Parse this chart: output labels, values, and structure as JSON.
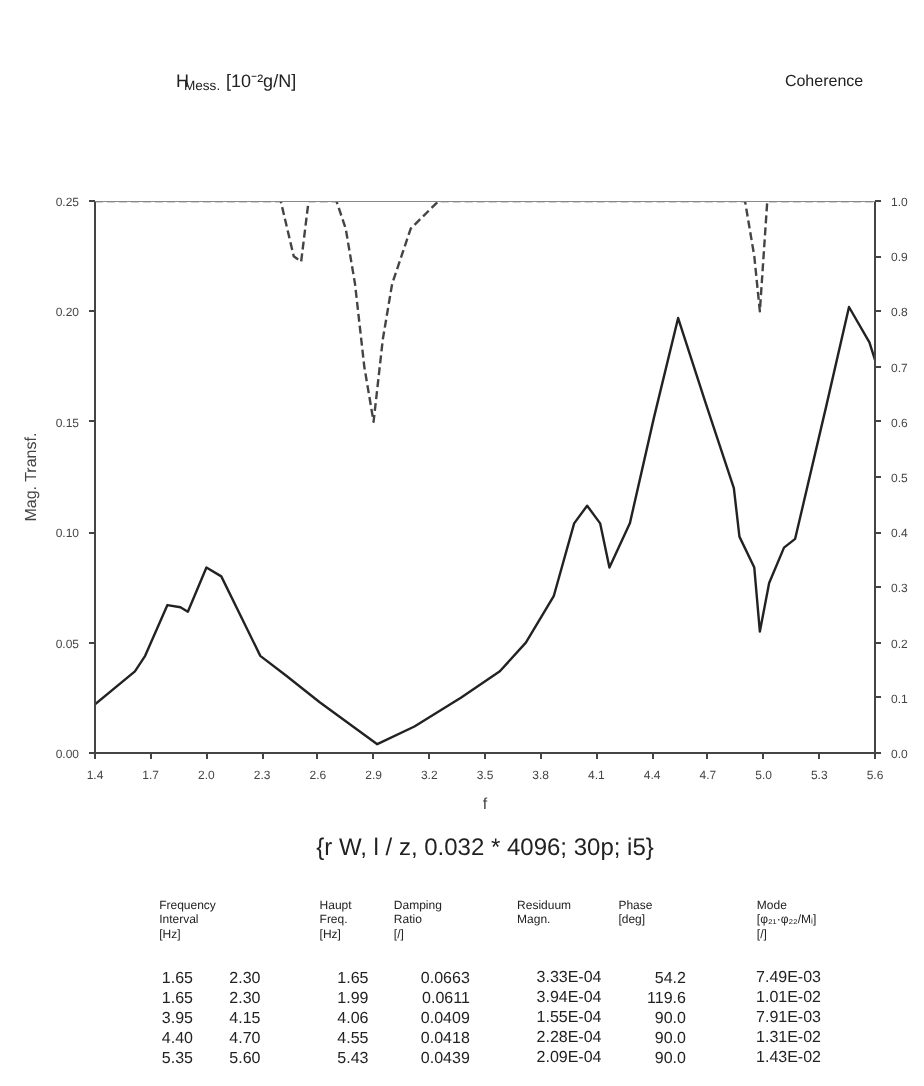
{
  "chart_data": {
    "type": "line",
    "title": "H$_{Mess.}$ [10⁻²g/N]",
    "subtitle": "{r W, l / z, 0.032 * 4096; 30p; i5}",
    "xlabel": "f",
    "ylabel": "Mag. Transf.",
    "xlim": [
      1.4,
      5.6
    ],
    "xticks": [
      1.4,
      1.7,
      {
        "value": 2.0,
        "label": "2.0"
      },
      2.3,
      2.6,
      2.9,
      3.2,
      3.5,
      3.8,
      4.1,
      4.4,
      4.7,
      {
        "value": 5.0,
        "label": "5.0"
      },
      5.3,
      5.6
    ],
    "ylim": [
      0,
      0.25
    ],
    "yticks": [
      {
        "value": 0,
        "label": "0.00"
      },
      {
        "value": 0.05,
        "label": "0.05"
      },
      {
        "value": 0.1,
        "label": "0.10"
      },
      {
        "value": 0.15,
        "label": "0.15"
      },
      {
        "value": 0.2,
        "label": "0.20"
      },
      {
        "value": 0.25,
        "label": "0.25"
      }
    ],
    "y2lim": [
      0,
      1
    ],
    "y2ticks": [
      {
        "value": 0,
        "label": "0.0"
      },
      0.1,
      0.2,
      0.3,
      0.4,
      0.5,
      0.6,
      0.7,
      0.8,
      0.9,
      {
        "value": 1,
        "label": "1.0"
      }
    ],
    "grid": false,
    "marker": "none",
    "series": [
      {
        "color": "#222222",
        "line_style": "solid",
        "x": [
          1.4,
          1.615,
          1.67,
          1.79,
          1.86,
          1.9,
          2.0,
          2.08,
          2.29,
          2.43,
          2.61,
          2.92,
          3.12,
          3.37,
          3.58,
          3.72,
          3.87,
          3.98,
          4.05,
          4.12,
          4.17,
          4.28,
          4.41,
          4.54,
          4.69,
          4.84,
          4.87,
          4.95,
          4.98,
          5.03,
          5.11,
          5.17,
          5.34,
          5.46,
          5.57,
          5.6
        ],
        "values": [
          0.022,
          0.037,
          0.044,
          0.067,
          0.066,
          0.064,
          0.084,
          0.08,
          0.044,
          0.035,
          0.023,
          0.004,
          0.012,
          0.025,
          0.037,
          0.05,
          0.071,
          0.104,
          0.112,
          0.104,
          0.084,
          0.104,
          0.152,
          0.197,
          0.158,
          0.12,
          0.098,
          0.084,
          0.055,
          0.077,
          0.093,
          0.097,
          0.158,
          0.202,
          0.186,
          0.178
        ]
      },
      {
        "color": "#444444",
        "line_style": "dashed",
        "axis": "y2",
        "x": [
          1.4,
          2.4,
          2.47,
          2.51,
          2.55,
          2.7,
          2.75,
          2.8,
          2.85,
          2.9,
          2.95,
          3.0,
          3.1,
          3.25,
          4.9,
          4.95,
          4.98,
          5.02,
          5.6
        ],
        "values": [
          1.0,
          1.0,
          0.9,
          0.89,
          1.0,
          1.0,
          0.95,
          0.85,
          0.7,
          0.6,
          0.75,
          0.85,
          0.95,
          1.0,
          1.0,
          0.9,
          0.8,
          1.0,
          1.0
        ]
      }
    ],
    "annotations": [
      "Coherence",
      "Frequency\nInterval\n[Hz]",
      "Haupt\nFreq.\n[Hz]",
      "Damping\nRatio\n[/]",
      "Residuum\nMagn.",
      "Phase\n[deg]",
      "Mode\n[φ₂₁·φ₂₂/Mᵢ]\n[/]",
      "1.65",
      "2.30",
      "1.65",
      "0.0663",
      "3.33E-04",
      "54.2",
      "7.49E-03",
      "1.65",
      "2.30",
      "1.99",
      "0.0611",
      "3.94E-04",
      "119.6",
      "1.01E-02",
      "3.95",
      "4.15",
      "4.06",
      "0.0409",
      "1.55E-04",
      "90.0",
      "7.91E-03",
      "4.40",
      "4.70",
      "4.55",
      "0.0418",
      "2.28E-04",
      "90.0",
      "1.31E-02",
      "5.35",
      "5.60",
      "5.43",
      "0.0439",
      "2.09E-04",
      "90.0",
      "1.43E-02"
    ]
  }
}
